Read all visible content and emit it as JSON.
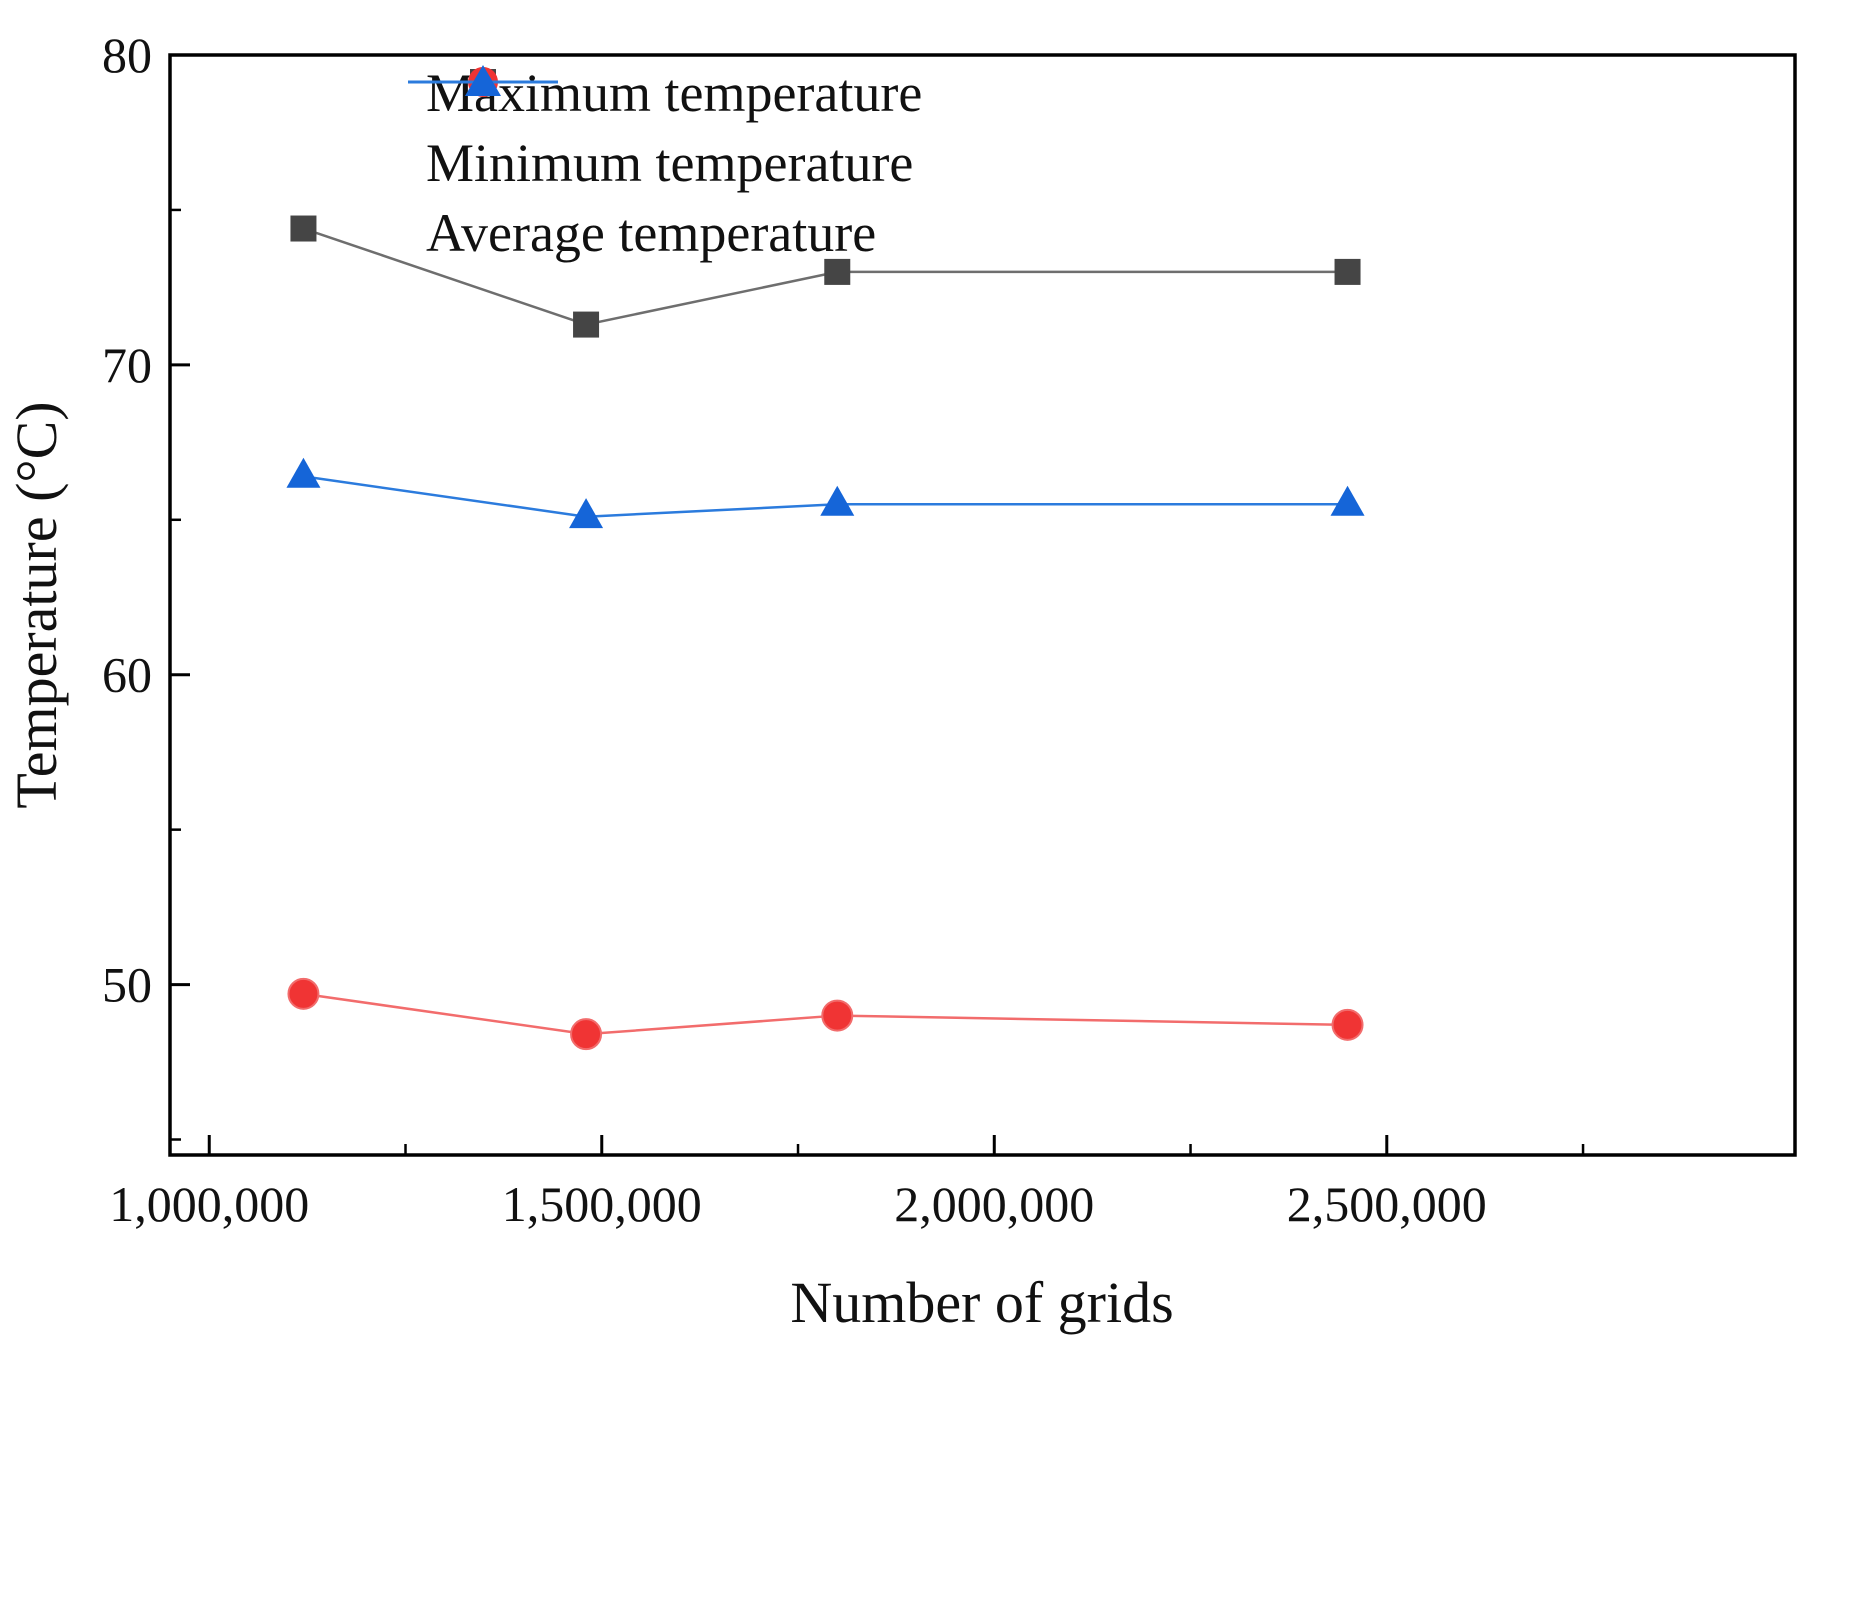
{
  "figure": {
    "background": "#ffffff",
    "frame_color": "#000000",
    "text_color": "#111111"
  },
  "chart_data": {
    "type": "line",
    "title": "",
    "xlabel": "Number of grids",
    "ylabel": "Temperature (°C)",
    "grid": false,
    "legend_position": "top-left-inside",
    "x_axis": {
      "range": [
        950000,
        3020000
      ],
      "major_ticks": [
        {
          "value": 1000000,
          "label": "1,000,000"
        },
        {
          "value": 1500000,
          "label": "1,500,000"
        },
        {
          "value": 2000000,
          "label": "2,000,000"
        },
        {
          "value": 2500000,
          "label": "2,500,000"
        }
      ],
      "minor_ticks": [
        1250000,
        1750000,
        2250000,
        2750000
      ]
    },
    "y_axis": {
      "range": [
        44.5,
        80
      ],
      "major_ticks": [
        {
          "value": 50,
          "label": "50"
        },
        {
          "value": 60,
          "label": "60"
        },
        {
          "value": 70,
          "label": "70"
        },
        {
          "value": 80,
          "label": "80"
        }
      ],
      "minor_ticks": [
        45,
        55,
        65,
        75
      ]
    },
    "x": [
      1120000,
      1480000,
      1800000,
      2450000
    ],
    "series": [
      {
        "name": "Maximum temperature",
        "marker": "square",
        "color": "#454545",
        "line_color": "#6e6e6e",
        "values": [
          74.4,
          71.3,
          73.0,
          73.0
        ]
      },
      {
        "name": "Minimum temperature",
        "marker": "circle",
        "color": "#f03434",
        "line_color": "#f26c6c",
        "values": [
          49.7,
          48.4,
          49.0,
          48.7
        ]
      },
      {
        "name": "Average temperature",
        "marker": "triangle",
        "color": "#1565d8",
        "line_color": "#2b7bdd",
        "values": [
          66.4,
          65.1,
          65.5,
          65.5
        ]
      }
    ]
  }
}
